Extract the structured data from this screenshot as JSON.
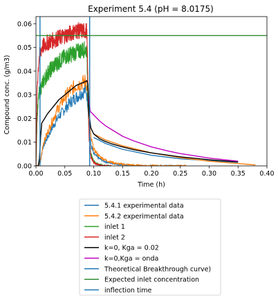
{
  "chart_data": {
    "type": "line",
    "title": "Experiment 5.4 (pH = 8.0175)",
    "xlabel": "Time (h)",
    "ylabel": "Compound conc. (g/m3)",
    "xlim": [
      0,
      0.4
    ],
    "ylim": [
      0,
      0.063
    ],
    "x_ticks": [
      "0.00",
      "0.05",
      "0.10",
      "0.15",
      "0.20",
      "0.25",
      "0.30",
      "0.35",
      "0.40"
    ],
    "y_ticks": [
      "0.00",
      "0.01",
      "0.02",
      "0.03",
      "0.04",
      "0.05",
      "0.06"
    ],
    "grid": false,
    "legend_placement": "below",
    "series": [
      {
        "name": "5.4.1 experimental data",
        "color": "#1f77b4",
        "noisy": true,
        "x": [
          0.0,
          0.004,
          0.008,
          0.012,
          0.02,
          0.03,
          0.04,
          0.05,
          0.06,
          0.07,
          0.08,
          0.087,
          0.09,
          0.092,
          0.095,
          0.1,
          0.11,
          0.12,
          0.13,
          0.14,
          0.15,
          0.16,
          0.17,
          0.18,
          0.2,
          0.22,
          0.25
        ],
        "y": [
          0.0,
          0.0,
          0.002,
          0.008,
          0.012,
          0.017,
          0.021,
          0.024,
          0.027,
          0.029,
          0.031,
          0.032,
          0.026,
          0.016,
          0.009,
          0.005,
          0.003,
          0.0018,
          0.0012,
          0.0008,
          0.0005,
          0.0003,
          0.0002,
          0.0001,
          0.0,
          0.0,
          0.0
        ]
      },
      {
        "name": "5.4.2 experimental data",
        "color": "#ff7f0e",
        "noisy": true,
        "x": [
          0.0,
          0.004,
          0.008,
          0.012,
          0.02,
          0.03,
          0.04,
          0.05,
          0.06,
          0.07,
          0.08,
          0.087,
          0.09,
          0.092,
          0.095,
          0.1,
          0.11,
          0.12,
          0.13,
          0.14,
          0.15,
          0.16,
          0.17,
          0.18,
          0.2,
          0.22,
          0.25,
          0.26
        ],
        "y": [
          0.0,
          0.0,
          0.002,
          0.009,
          0.014,
          0.02,
          0.025,
          0.029,
          0.032,
          0.034,
          0.035,
          0.036,
          0.03,
          0.02,
          0.012,
          0.007,
          0.004,
          0.0025,
          0.0016,
          0.001,
          0.0007,
          0.0005,
          0.0003,
          0.0002,
          0.0001,
          0.0,
          0.0,
          0.0
        ]
      },
      {
        "name": "inlet 1",
        "color": "#2ca02c",
        "noisy": true,
        "x": [
          0.0,
          0.002,
          0.005,
          0.01,
          0.02,
          0.03,
          0.04,
          0.05,
          0.06,
          0.07,
          0.08,
          0.088,
          0.09,
          0.092,
          0.095,
          0.1,
          0.105,
          0.11,
          0.12,
          0.13
        ],
        "y": [
          0.0,
          0.02,
          0.03,
          0.034,
          0.039,
          0.042,
          0.044,
          0.046,
          0.047,
          0.048,
          0.049,
          0.049,
          0.03,
          0.012,
          0.005,
          0.002,
          0.001,
          0.0005,
          0.0,
          0.0
        ]
      },
      {
        "name": "inlet 2",
        "color": "#d62728",
        "noisy": true,
        "x": [
          0.0,
          0.002,
          0.005,
          0.01,
          0.02,
          0.03,
          0.04,
          0.05,
          0.06,
          0.07,
          0.08,
          0.088,
          0.09,
          0.092,
          0.095,
          0.1,
          0.105,
          0.11,
          0.12,
          0.13
        ],
        "y": [
          0.0,
          0.033,
          0.045,
          0.05,
          0.052,
          0.053,
          0.054,
          0.055,
          0.056,
          0.057,
          0.057,
          0.057,
          0.035,
          0.012,
          0.004,
          0.0015,
          0.0007,
          0.0003,
          0.0,
          0.0
        ]
      },
      {
        "name": "k=0, Kga = 0.02",
        "color": "#000000",
        "noisy": false,
        "x": [
          0.0,
          0.004,
          0.006,
          0.008,
          0.01,
          0.02,
          0.03,
          0.04,
          0.05,
          0.06,
          0.07,
          0.08,
          0.085,
          0.088,
          0.09,
          0.092,
          0.095,
          0.1,
          0.11,
          0.12,
          0.13,
          0.15,
          0.17,
          0.2,
          0.25,
          0.3,
          0.35
        ],
        "y": [
          0.0,
          0.0,
          0.003,
          0.012,
          0.018,
          0.022,
          0.025,
          0.028,
          0.03,
          0.032,
          0.034,
          0.035,
          0.0355,
          0.036,
          0.0345,
          0.022,
          0.016,
          0.0135,
          0.0115,
          0.0103,
          0.0094,
          0.008,
          0.0068,
          0.0055,
          0.0038,
          0.0026,
          0.0017
        ]
      },
      {
        "name": "k=0,Kga = onda",
        "color": "#bf00bf",
        "noisy": false,
        "x": [
          0.092,
          0.094,
          0.1,
          0.11,
          0.12,
          0.13,
          0.15,
          0.17,
          0.2,
          0.23,
          0.25,
          0.3,
          0.35
        ],
        "y": [
          0.028,
          0.023,
          0.0215,
          0.019,
          0.017,
          0.0155,
          0.0125,
          0.0105,
          0.008,
          0.0062,
          0.0052,
          0.0033,
          0.002
        ]
      },
      {
        "name": "Theoretical Breakthrough curve)",
        "color": "#1f77b4",
        "noisy": false,
        "x": [
          0.007,
          0.007
        ],
        "y": [
          0.0,
          0.063
        ]
      },
      {
        "name": "Expected inlet concentration",
        "color": "#2e8b2e",
        "noisy": false,
        "x": [
          0.0,
          0.4
        ],
        "y": [
          0.055,
          0.055
        ]
      },
      {
        "name": "inflection time",
        "color": "#1f77b4",
        "noisy": false,
        "x": [
          0.093,
          0.093
        ],
        "y": [
          0.0,
          0.063
        ]
      },
      {
        "name": "",
        "color": "#1f77b4",
        "noisy": false,
        "x": [
          0.1,
          0.12,
          0.15,
          0.2,
          0.25,
          0.3,
          0.35
        ],
        "y": [
          0.012,
          0.0095,
          0.007,
          0.0045,
          0.003,
          0.0022,
          0.0015
        ]
      },
      {
        "name": "",
        "color": "#ff7f0e",
        "noisy": false,
        "x": [
          0.1,
          0.12,
          0.15,
          0.2,
          0.25,
          0.3,
          0.35,
          0.38
        ],
        "y": [
          0.0135,
          0.011,
          0.0085,
          0.0055,
          0.0035,
          0.002,
          0.001,
          0.0004
        ]
      }
    ]
  }
}
